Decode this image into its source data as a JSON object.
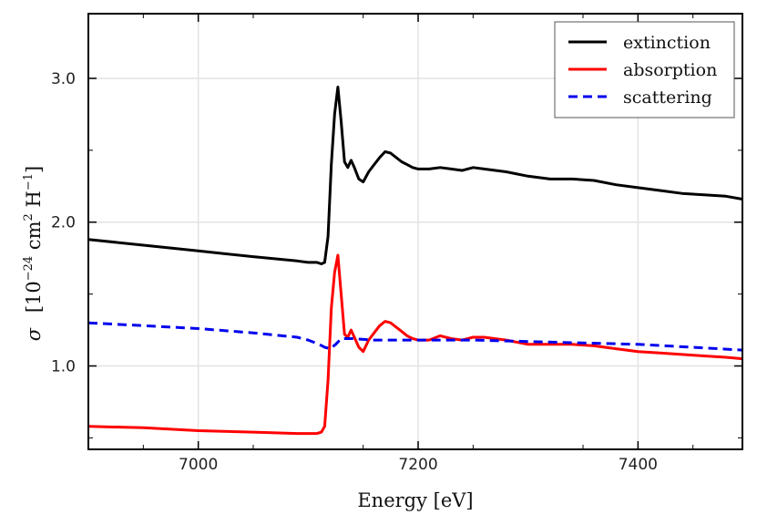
{
  "chart_data": {
    "type": "line",
    "xlabel": "Energy [eV]",
    "ylabel": {
      "symbol": "σ",
      "unit_prefix": "[10",
      "unit_exp1": "−24",
      "unit_mid": " cm",
      "unit_exp2": "2",
      "unit_h": " H",
      "unit_exp3": "−1",
      "unit_suffix": "]"
    },
    "xlim": [
      6900,
      7495
    ],
    "ylim": [
      0.42,
      3.45
    ],
    "xticks": [
      7000,
      7200,
      7400
    ],
    "xtick_labels": [
      "7000",
      "7200",
      "7400"
    ],
    "yticks": [
      1.0,
      2.0,
      3.0
    ],
    "ytick_labels": [
      "1.0",
      "2.0",
      "3.0"
    ],
    "grid": true,
    "legend_position": "top-right",
    "series": [
      {
        "name": "extinction",
        "color": "#000000",
        "dash": "solid",
        "x": [
          6900,
          6950,
          7000,
          7050,
          7090,
          7100,
          7108,
          7112,
          7115,
          7118,
          7121,
          7124,
          7127,
          7130,
          7133,
          7136,
          7139,
          7142,
          7146,
          7150,
          7155,
          7160,
          7165,
          7170,
          7175,
          7180,
          7185,
          7190,
          7195,
          7200,
          7210,
          7220,
          7230,
          7240,
          7250,
          7260,
          7280,
          7300,
          7320,
          7340,
          7360,
          7380,
          7400,
          7420,
          7440,
          7460,
          7480,
          7495
        ],
        "y": [
          1.88,
          1.84,
          1.8,
          1.76,
          1.73,
          1.72,
          1.72,
          1.71,
          1.72,
          1.9,
          2.4,
          2.75,
          2.94,
          2.7,
          2.42,
          2.38,
          2.43,
          2.38,
          2.3,
          2.28,
          2.35,
          2.4,
          2.45,
          2.49,
          2.48,
          2.45,
          2.42,
          2.4,
          2.38,
          2.37,
          2.37,
          2.38,
          2.37,
          2.36,
          2.38,
          2.37,
          2.35,
          2.32,
          2.3,
          2.3,
          2.29,
          2.26,
          2.24,
          2.22,
          2.2,
          2.19,
          2.18,
          2.16
        ]
      },
      {
        "name": "absorption",
        "color": "#ff0000",
        "dash": "solid",
        "x": [
          6900,
          6950,
          7000,
          7050,
          7090,
          7100,
          7108,
          7112,
          7115,
          7118,
          7121,
          7124,
          7127,
          7130,
          7133,
          7136,
          7139,
          7142,
          7146,
          7150,
          7155,
          7160,
          7165,
          7170,
          7175,
          7180,
          7185,
          7190,
          7195,
          7200,
          7210,
          7220,
          7230,
          7240,
          7250,
          7260,
          7280,
          7300,
          7320,
          7340,
          7360,
          7380,
          7400,
          7420,
          7440,
          7460,
          7480,
          7495
        ],
        "y": [
          0.58,
          0.57,
          0.55,
          0.54,
          0.53,
          0.53,
          0.53,
          0.54,
          0.58,
          0.9,
          1.4,
          1.65,
          1.77,
          1.5,
          1.22,
          1.2,
          1.25,
          1.2,
          1.13,
          1.1,
          1.18,
          1.23,
          1.28,
          1.31,
          1.3,
          1.27,
          1.24,
          1.21,
          1.19,
          1.18,
          1.18,
          1.21,
          1.19,
          1.18,
          1.2,
          1.2,
          1.18,
          1.15,
          1.15,
          1.15,
          1.14,
          1.12,
          1.1,
          1.09,
          1.08,
          1.07,
          1.06,
          1.05
        ]
      },
      {
        "name": "scattering",
        "color": "#0000ee",
        "dash": "dashed",
        "x": [
          6900,
          6950,
          7000,
          7050,
          7090,
          7100,
          7110,
          7115,
          7120,
          7125,
          7130,
          7140,
          7160,
          7200,
          7250,
          7300,
          7350,
          7400,
          7450,
          7495
        ],
        "y": [
          1.3,
          1.28,
          1.26,
          1.23,
          1.2,
          1.18,
          1.15,
          1.13,
          1.12,
          1.15,
          1.19,
          1.19,
          1.18,
          1.18,
          1.18,
          1.17,
          1.16,
          1.15,
          1.13,
          1.11
        ]
      }
    ]
  }
}
